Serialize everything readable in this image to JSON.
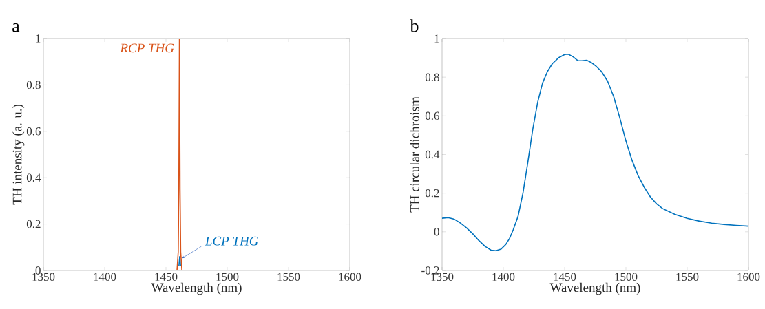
{
  "chart_data": [
    {
      "type": "line",
      "title": "a",
      "xlabel": "Wavelength (nm)",
      "ylabel": "TH intensity (a. u.)",
      "xlim": [
        1350,
        1600
      ],
      "ylim": [
        0,
        1
      ],
      "xticks": [
        1350,
        1400,
        1450,
        1500,
        1550,
        1600
      ],
      "yticks": [
        0,
        0.2,
        0.4,
        0.6,
        0.8,
        1
      ],
      "series": [
        {
          "color": "#d95319",
          "x": [
            1350,
            1459,
            1460,
            1460.5,
            1461,
            1461.5,
            1462,
            1463,
            1600
          ],
          "values": [
            0,
            0,
            0.08,
            0.35,
            1,
            0.35,
            0.08,
            0,
            0
          ]
        },
        {
          "color": "#0072bd",
          "x": [
            1460.6,
            1461.2,
            1461.9
          ],
          "values": [
            0.02,
            0.06,
            0.02
          ]
        }
      ],
      "annotations": [
        {
          "text": "RCP THG",
          "x": 1461,
          "y": 1
        },
        {
          "text": "LCP THG",
          "x": 1462,
          "y": 0.05
        }
      ]
    },
    {
      "type": "line",
      "title": "b",
      "xlabel": "Wavelength (nm)",
      "ylabel": "TH circular dichroism",
      "xlim": [
        1350,
        1600
      ],
      "ylim": [
        -0.2,
        1
      ],
      "xticks": [
        1350,
        1400,
        1450,
        1500,
        1550,
        1600
      ],
      "yticks": [
        -0.2,
        0,
        0.2,
        0.4,
        0.6,
        0.8,
        1
      ],
      "series": [
        {
          "color": "#0072bd",
          "x": [
            1350,
            1355,
            1360,
            1365,
            1370,
            1375,
            1380,
            1385,
            1390,
            1394,
            1398,
            1402,
            1405,
            1408,
            1412,
            1416,
            1420,
            1424,
            1428,
            1432,
            1436,
            1440,
            1445,
            1450,
            1453,
            1457,
            1461,
            1464,
            1468,
            1472,
            1476,
            1480,
            1485,
            1490,
            1495,
            1500,
            1505,
            1510,
            1515,
            1520,
            1525,
            1530,
            1540,
            1550,
            1560,
            1570,
            1580,
            1590,
            1600
          ],
          "values": [
            0.07,
            0.073,
            0.065,
            0.045,
            0.02,
            -0.01,
            -0.045,
            -0.075,
            -0.095,
            -0.098,
            -0.09,
            -0.065,
            -0.035,
            0.01,
            0.08,
            0.2,
            0.36,
            0.53,
            0.67,
            0.77,
            0.83,
            0.87,
            0.9,
            0.917,
            0.919,
            0.905,
            0.885,
            0.885,
            0.888,
            0.875,
            0.855,
            0.83,
            0.78,
            0.7,
            0.59,
            0.47,
            0.37,
            0.29,
            0.23,
            0.18,
            0.145,
            0.12,
            0.09,
            0.07,
            0.055,
            0.045,
            0.038,
            0.033,
            0.029
          ]
        }
      ]
    }
  ]
}
